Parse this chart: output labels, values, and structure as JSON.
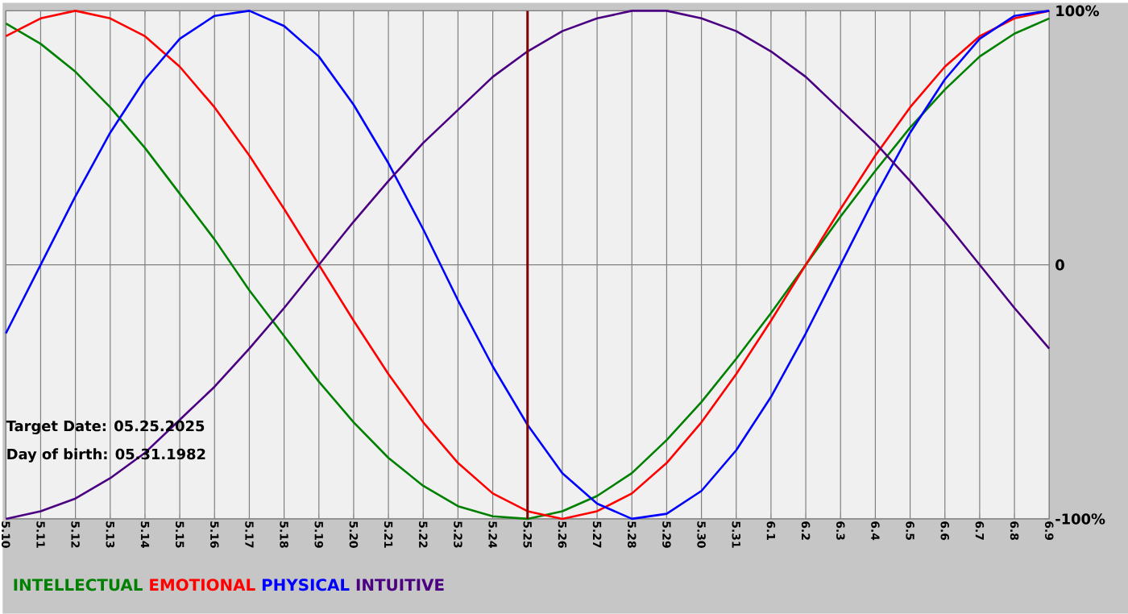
{
  "chart_data": {
    "type": "line",
    "categories": [
      "5.10",
      "5.11",
      "5.12",
      "5.13",
      "5.14",
      "5.15",
      "5.16",
      "5.17",
      "5.18",
      "5.19",
      "5.20",
      "5.21",
      "5.22",
      "5.23",
      "5.24",
      "5.25",
      "5.26",
      "5.27",
      "5.28",
      "5.29",
      "5.30",
      "5.31",
      "6.1",
      "6.2",
      "6.3",
      "6.4",
      "6.5",
      "6.6",
      "6.7",
      "6.8",
      "6.9"
    ],
    "series": [
      {
        "name": "INTELLECTUAL",
        "color": "#008000",
        "values": [
          95,
          87,
          76,
          62,
          46,
          28,
          10,
          -10,
          -28,
          -46,
          -62,
          -76,
          -87,
          -95,
          -99,
          -100,
          -97,
          -91,
          -82,
          -69,
          -54,
          -37,
          -19,
          0,
          19,
          37,
          54,
          69,
          82,
          91,
          97
        ]
      },
      {
        "name": "EMOTIONAL",
        "color": "#ff0000",
        "values": [
          90,
          97,
          100,
          97,
          90,
          78,
          62,
          43,
          22,
          0,
          -22,
          -43,
          -62,
          -78,
          -90,
          -97,
          -100,
          -97,
          -90,
          -78,
          -62,
          -43,
          -22,
          0,
          22,
          43,
          62,
          78,
          90,
          97,
          100
        ]
      },
      {
        "name": "PHYSICAL",
        "color": "#0000ff",
        "values": [
          -27,
          0,
          27,
          52,
          73,
          89,
          98,
          100,
          94,
          82,
          63,
          40,
          14,
          -14,
          -40,
          -63,
          -82,
          -94,
          -100,
          -98,
          -89,
          -73,
          -52,
          -27,
          0,
          27,
          52,
          73,
          89,
          98,
          100
        ]
      },
      {
        "name": "INTUITIVE",
        "color": "#4b0082",
        "values": [
          -100,
          -97,
          -92,
          -84,
          -74,
          -61,
          -48,
          -33,
          -17,
          0,
          17,
          33,
          48,
          61,
          74,
          84,
          92,
          97,
          100,
          100,
          97,
          92,
          84,
          74,
          61,
          48,
          33,
          17,
          0,
          -17,
          -33
        ]
      }
    ],
    "ylim": [
      -100,
      100
    ],
    "yticks": [
      {
        "value": -100,
        "label": "-100%"
      },
      0,
      {
        "value": 100,
        "label": "100%"
      }
    ],
    "grid": true,
    "legend": "bottom",
    "ref_lines": [
      {
        "axis": "x",
        "value": "5.25",
        "color": "#800000"
      }
    ],
    "annotations": [
      "Target Date: 05.25.2025",
      "Day of birth: 05.31.1982"
    ]
  }
}
